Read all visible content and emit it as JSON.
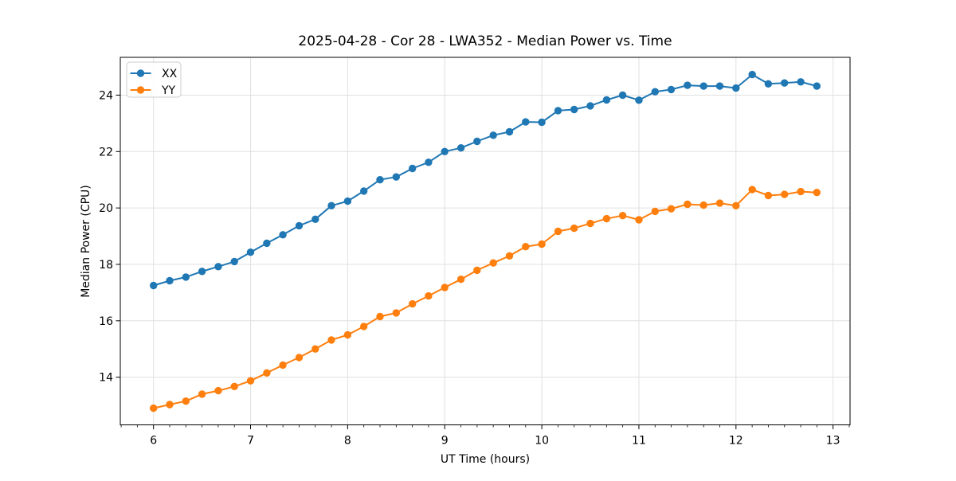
{
  "chart_data": {
    "type": "line",
    "title": "2025-04-28 - Cor 28 - LWA352 - Median Power vs. Time",
    "xlabel": "UT Time (hours)",
    "ylabel": "Median Power (CPU)",
    "xlim": [
      5.658,
      13.175
    ],
    "ylim": [
      12.31,
      25.34
    ],
    "xticks": [
      6,
      7,
      8,
      9,
      10,
      11,
      12,
      13
    ],
    "yticks": [
      14,
      16,
      18,
      20,
      22,
      24
    ],
    "x_minor_step": 0.166667,
    "grid": true,
    "grid_color": "#e0e0e0",
    "spine_color": "#000000",
    "legend_position": "upper-left",
    "x": [
      6.0,
      6.167,
      6.333,
      6.5,
      6.667,
      6.833,
      7.0,
      7.167,
      7.333,
      7.5,
      7.667,
      7.833,
      8.0,
      8.167,
      8.333,
      8.5,
      8.667,
      8.833,
      9.0,
      9.167,
      9.333,
      9.5,
      9.667,
      9.833,
      10.0,
      10.167,
      10.333,
      10.5,
      10.667,
      10.833,
      11.0,
      11.167,
      11.333,
      11.5,
      11.667,
      11.833,
      12.0,
      12.167,
      12.333,
      12.5,
      12.667,
      12.833
    ],
    "series": [
      {
        "name": "XX",
        "color": "#1f77b4",
        "marker": "circle",
        "values": [
          17.25,
          17.42,
          17.55,
          17.75,
          17.92,
          18.1,
          18.43,
          18.75,
          19.05,
          19.37,
          19.6,
          20.08,
          20.24,
          20.6,
          21.0,
          21.1,
          21.4,
          21.62,
          22.0,
          22.13,
          22.36,
          22.58,
          22.7,
          23.05,
          23.04,
          23.45,
          23.49,
          23.62,
          23.83,
          24.0,
          23.82,
          24.12,
          24.2,
          24.35,
          24.32,
          24.32,
          24.25,
          24.73,
          24.4,
          24.43,
          24.47,
          24.32
        ]
      },
      {
        "name": "YY",
        "color": "#ff7f0e",
        "marker": "circle",
        "values": [
          12.9,
          13.03,
          13.15,
          13.4,
          13.52,
          13.67,
          13.87,
          14.15,
          14.43,
          14.7,
          15.0,
          15.32,
          15.5,
          15.8,
          16.15,
          16.28,
          16.6,
          16.88,
          17.18,
          17.47,
          17.79,
          18.05,
          18.3,
          18.63,
          18.72,
          19.17,
          19.28,
          19.45,
          19.62,
          19.73,
          19.58,
          19.88,
          19.97,
          20.13,
          20.1,
          20.17,
          20.08,
          20.65,
          20.44,
          20.48,
          20.58,
          20.55
        ]
      }
    ]
  }
}
